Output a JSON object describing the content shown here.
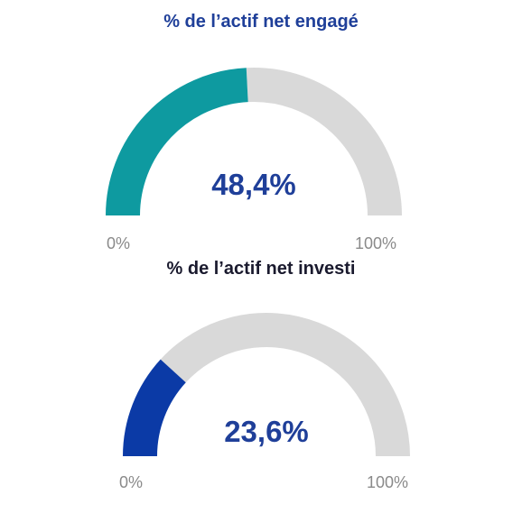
{
  "chart_data": [
    {
      "type": "gauge",
      "title": "% de l’actif net engagé",
      "value": 48.4,
      "value_label": "48,4%",
      "min": 0,
      "max": 100,
      "min_label": "0%",
      "max_label": "100%",
      "fill_color": "#0e9aa0",
      "track_color": "#d9d9d9",
      "value_color": "#1f3f99"
    },
    {
      "type": "gauge",
      "title": "% de l’actif net investi",
      "value": 23.6,
      "value_label": "23,6%",
      "min": 0,
      "max": 100,
      "min_label": "0%",
      "max_label": "100%",
      "fill_color": "#0b3aa6",
      "track_color": "#d9d9d9",
      "value_color": "#1f3f99"
    }
  ]
}
